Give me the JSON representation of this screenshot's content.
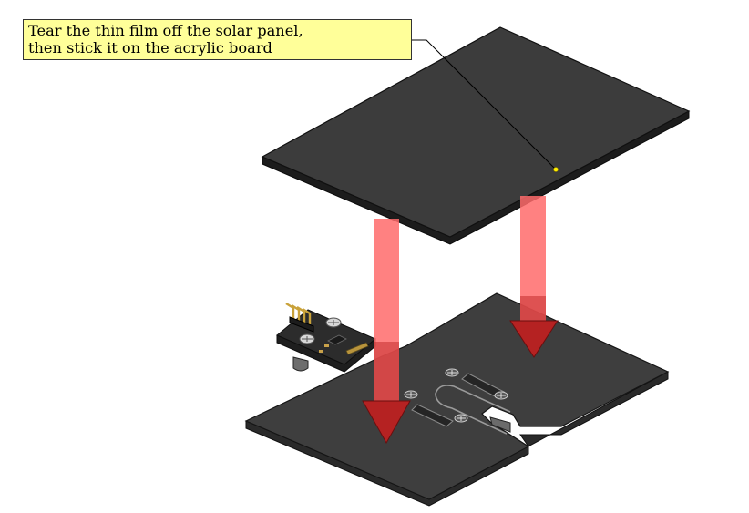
{
  "callout": {
    "line1": "Tear the thin film off the solar panel,",
    "line2": "then stick it on the acrylic board"
  },
  "colors": {
    "panel_top": "#3c3c3c",
    "panel_edge": "#1a1a1a",
    "board_top": "#3e3e3e",
    "arrow_fill": "#ff6b6b",
    "arrow_dark": "#8a1010",
    "callout_bg": "#ffff99",
    "leader_dot": "#ffee00"
  }
}
